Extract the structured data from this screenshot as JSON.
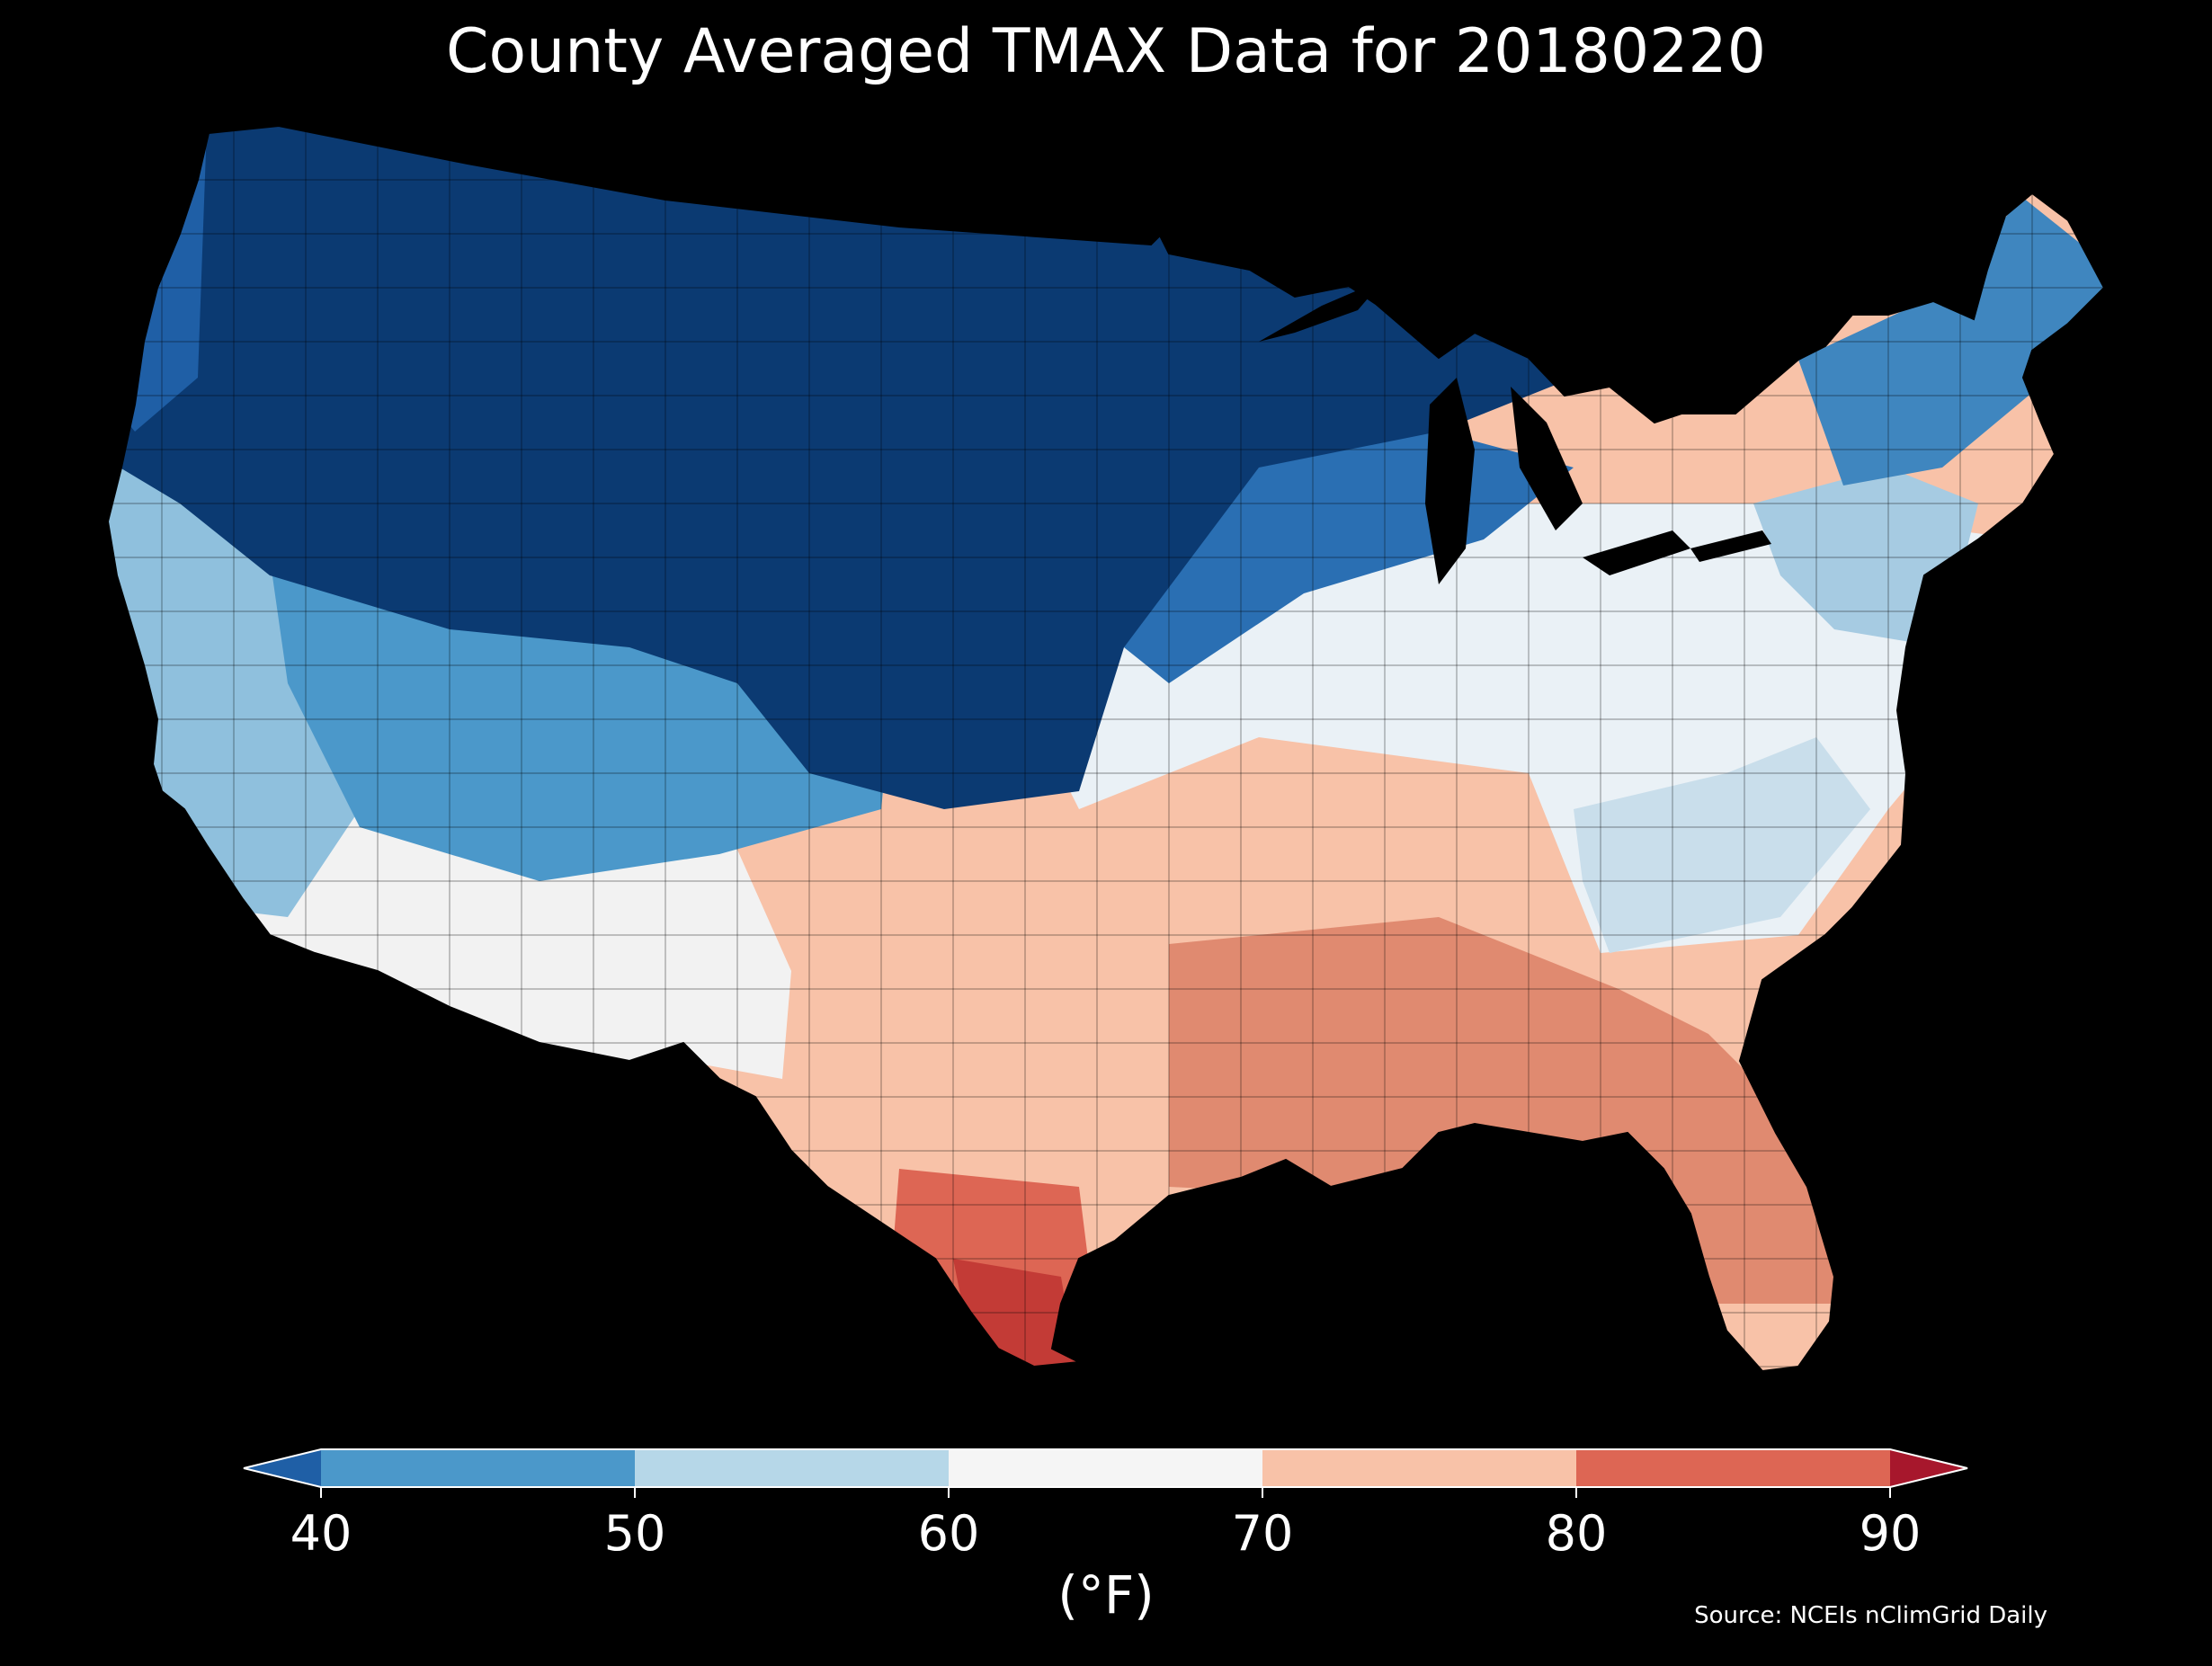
{
  "title": "County Averaged TMAX Data for 20180220",
  "source": "Source: NCEIs nClimGrid Daily",
  "colorbar": {
    "label": "(°F)",
    "ticks": [
      "40",
      "50",
      "60",
      "70",
      "80",
      "90"
    ],
    "bins": [
      {
        "range": "<40",
        "color": "#1f5fa6"
      },
      {
        "range": "40-50",
        "color": "#4b98ca"
      },
      {
        "range": "50-60",
        "color": "#b6d7e8"
      },
      {
        "range": "60-70",
        "color": "#f5f5f5"
      },
      {
        "range": "70-80",
        "color": "#f8c2a8"
      },
      {
        "range": "80-90",
        "color": "#dd6654"
      },
      {
        "range": ">90",
        "color": "#a7172c"
      }
    ]
  },
  "chart_data": {
    "type": "heatmap",
    "title": "County Averaged TMAX Data for 20180220",
    "variable": "TMAX",
    "units": "°F",
    "date": "20180220",
    "scale_min": 40,
    "scale_max": 90,
    "step": 10,
    "regions": [
      {
        "region": "Northern Plains / Rockies / Upper Midwest",
        "tmax_bin": "<40"
      },
      {
        "region": "Pacific Northwest",
        "tmax_bin": "<40"
      },
      {
        "region": "Great Basin / Colorado",
        "tmax_bin": "40-50"
      },
      {
        "region": "California coast",
        "tmax_bin": "50-60"
      },
      {
        "region": "Maine / Northern New England",
        "tmax_bin": "40-50"
      },
      {
        "region": "Southern Arizona",
        "tmax_bin": "60-70"
      },
      {
        "region": "Ohio Valley / Mid-Atlantic",
        "tmax_bin": "60-70"
      },
      {
        "region": "Tennessee / Kentucky",
        "tmax_bin": "70-80"
      },
      {
        "region": "Southern Plains / Texas",
        "tmax_bin": "70-80"
      },
      {
        "region": "Lower Mississippi / Gulf Coast",
        "tmax_bin": "80-90"
      },
      {
        "region": "Florida",
        "tmax_bin": "80-90"
      },
      {
        "region": "South Texas",
        "tmax_bin": ">90"
      }
    ]
  }
}
